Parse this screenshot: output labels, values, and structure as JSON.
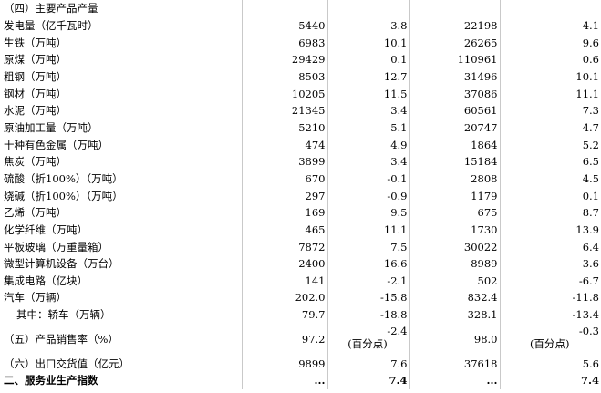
{
  "table": {
    "rows": [
      {
        "label": "（四）主要产品产量",
        "c1": "",
        "c2": "",
        "c3": "",
        "c4": ""
      },
      {
        "label": "发电量（亿千瓦时）",
        "c1": "5440",
        "c2": "3.8",
        "c3": "22198",
        "c4": "4.1"
      },
      {
        "label": "生铁（万吨）",
        "c1": "6983",
        "c2": "10.1",
        "c3": "26265",
        "c4": "9.6"
      },
      {
        "label": "原煤（万吨）",
        "c1": "29429",
        "c2": "0.1",
        "c3": "110961",
        "c4": "0.6"
      },
      {
        "label": "粗钢（万吨）",
        "c1": "8503",
        "c2": "12.7",
        "c3": "31496",
        "c4": "10.1"
      },
      {
        "label": "钢材（万吨）",
        "c1": "10205",
        "c2": "11.5",
        "c3": "37086",
        "c4": "11.1"
      },
      {
        "label": "水泥（万吨）",
        "c1": "21345",
        "c2": "3.4",
        "c3": "60561",
        "c4": "7.3"
      },
      {
        "label": "原油加工量（万吨）",
        "c1": "5210",
        "c2": "5.1",
        "c3": "20747",
        "c4": "4.7"
      },
      {
        "label": "十种有色金属（万吨）",
        "c1": "474",
        "c2": "4.9",
        "c3": "1864",
        "c4": "5.2"
      },
      {
        "label": "焦炭（万吨）",
        "c1": "3899",
        "c2": "3.4",
        "c3": "15184",
        "c4": "6.5"
      },
      {
        "label": "硫酸（折100%）（万吨）",
        "c1": "670",
        "c2": "-0.1",
        "c3": "2808",
        "c4": "4.5"
      },
      {
        "label": "烧碱（折100%）（万吨）",
        "c1": "297",
        "c2": "-0.9",
        "c3": "1179",
        "c4": "0.1"
      },
      {
        "label": "乙烯（万吨）",
        "c1": "169",
        "c2": "9.5",
        "c3": "675",
        "c4": "8.7"
      },
      {
        "label": "化学纤维（万吨）",
        "c1": "465",
        "c2": "11.1",
        "c3": "1730",
        "c4": "13.9"
      },
      {
        "label": "平板玻璃（万重量箱）",
        "c1": "7872",
        "c2": "7.5",
        "c3": "30022",
        "c4": "6.4"
      },
      {
        "label": "微型计算机设备（万台）",
        "c1": "2400",
        "c2": "16.6",
        "c3": "8989",
        "c4": "3.6"
      },
      {
        "label": "集成电路（亿块）",
        "c1": "141",
        "c2": "-2.1",
        "c3": "502",
        "c4": "-6.7"
      },
      {
        "label": "汽车（万辆）",
        "c1": "202.0",
        "c2": "-15.8",
        "c3": "832.4",
        "c4": "-11.8"
      },
      {
        "label": "其中：轿车（万辆）",
        "c1": "79.7",
        "c2": "-18.8",
        "c3": "328.1",
        "c4": "-13.4"
      }
    ],
    "sales_row": {
      "label": "（五）产品销售率（%）",
      "c1": "97.2",
      "c2": "-2.4",
      "c2_unit": "(百分点)",
      "c3": "98.0",
      "c4": "-0.3",
      "c4_unit": "(百分点)"
    },
    "export_row": {
      "label": "（六）出口交货值（亿元）",
      "c1": "9899",
      "c2": "7.6",
      "c3": "37618",
      "c4": "5.6"
    },
    "services_row": {
      "label": "二、服务业生产指数",
      "c1": "...",
      "c2": "7.4",
      "c3": "...",
      "c4": "7.4"
    }
  }
}
